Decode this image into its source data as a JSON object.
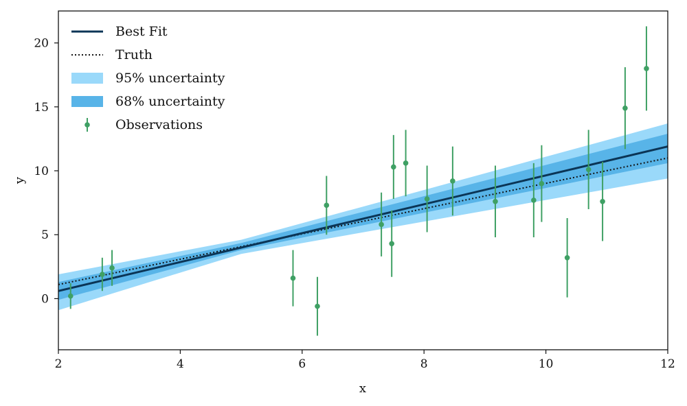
{
  "chart_data": {
    "type": "line",
    "title": "",
    "xlabel": "x",
    "ylabel": "y",
    "xlim": [
      2,
      12
    ],
    "ylim": [
      -4,
      22.5
    ],
    "xticks": [
      2,
      4,
      6,
      8,
      10,
      12
    ],
    "yticks": [
      0,
      5,
      10,
      15,
      20
    ],
    "grid": false,
    "legend_position": "top-left",
    "colors": {
      "best_fit": "#0b3556",
      "truth": "#111111",
      "band95": "#9ad9fa",
      "band68": "#58b4e8",
      "observations": "#3fa064"
    },
    "series": [
      {
        "name": "Best Fit",
        "kind": "line",
        "x": [
          2,
          12
        ],
        "y": [
          0.6,
          11.9
        ]
      },
      {
        "name": "Truth",
        "kind": "dotted-line",
        "x": [
          2,
          12
        ],
        "y": [
          1.1,
          11.0
        ]
      },
      {
        "name": "95% uncertainty",
        "kind": "band",
        "x": [
          2,
          5,
          12
        ],
        "lower": [
          -0.9,
          3.5,
          9.4
        ],
        "upper": [
          1.9,
          4.6,
          13.7
        ]
      },
      {
        "name": "68% uncertainty",
        "kind": "band",
        "x": [
          2,
          5,
          12
        ],
        "lower": [
          -0.1,
          3.8,
          10.6
        ],
        "upper": [
          1.3,
          4.35,
          12.9
        ]
      },
      {
        "name": "Observations",
        "kind": "errorbar",
        "points": [
          {
            "x": 2.2,
            "y": 0.2,
            "err": 1.0
          },
          {
            "x": 2.72,
            "y": 1.9,
            "err": 1.3
          },
          {
            "x": 2.88,
            "y": 2.4,
            "err": 1.4
          },
          {
            "x": 5.85,
            "y": 1.6,
            "err": 2.2
          },
          {
            "x": 6.25,
            "y": -0.6,
            "err": 2.3
          },
          {
            "x": 6.4,
            "y": 7.3,
            "err": 2.3
          },
          {
            "x": 7.3,
            "y": 5.8,
            "err": 2.5
          },
          {
            "x": 7.47,
            "y": 4.3,
            "err": 2.6
          },
          {
            "x": 7.5,
            "y": 10.3,
            "err": 2.5
          },
          {
            "x": 7.7,
            "y": 10.6,
            "err": 2.6
          },
          {
            "x": 8.05,
            "y": 7.8,
            "err": 2.6
          },
          {
            "x": 8.47,
            "y": 9.2,
            "err": 2.7
          },
          {
            "x": 9.17,
            "y": 7.6,
            "err": 2.8
          },
          {
            "x": 9.8,
            "y": 7.7,
            "err": 2.9
          },
          {
            "x": 9.93,
            "y": 9.0,
            "err": 3.0
          },
          {
            "x": 10.35,
            "y": 3.2,
            "err": 3.1
          },
          {
            "x": 10.7,
            "y": 10.1,
            "err": 3.1
          },
          {
            "x": 10.93,
            "y": 7.6,
            "err": 3.1
          },
          {
            "x": 11.3,
            "y": 14.9,
            "err": 3.2
          },
          {
            "x": 11.65,
            "y": 18.0,
            "err": 3.3
          }
        ]
      }
    ]
  }
}
